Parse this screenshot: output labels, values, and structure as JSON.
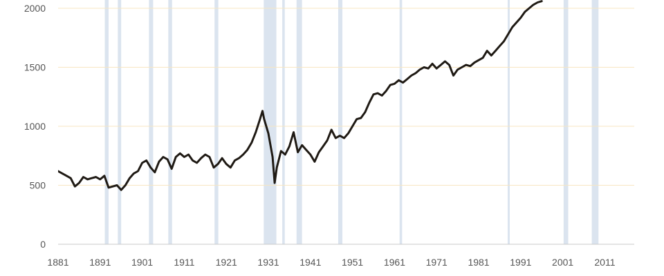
{
  "chart_data": {
    "type": "line",
    "title": "",
    "xlabel": "",
    "ylabel": "",
    "xlim": [
      1881,
      2018
    ],
    "ylim": [
      0,
      2000
    ],
    "grid": true,
    "legend": "none",
    "x_ticks": [
      "1881",
      "1891",
      "1901",
      "1911",
      "1921",
      "1931",
      "1941",
      "1951",
      "1961",
      "1971",
      "1981",
      "1991",
      "2001",
      "2011"
    ],
    "y_ticks": [
      "0",
      "500",
      "1000",
      "1500",
      "2000"
    ],
    "colors": {
      "line": "#1f1a14",
      "shading": "#dbe4ef",
      "grid": "#f7e6c1",
      "axis": "#c9c9c9"
    },
    "shaded_periods": [
      {
        "start": 1892.1,
        "end": 1893.0
      },
      {
        "start": 1895.2,
        "end": 1896.0
      },
      {
        "start": 1902.6,
        "end": 1903.6
      },
      {
        "start": 1907.2,
        "end": 1908.1
      },
      {
        "start": 1918.2,
        "end": 1919.1
      },
      {
        "start": 1929.9,
        "end": 1932.9
      },
      {
        "start": 1934.3,
        "end": 1934.9
      },
      {
        "start": 1937.7,
        "end": 1939.0
      },
      {
        "start": 1947.6,
        "end": 1948.6
      },
      {
        "start": 1962.2,
        "end": 1962.8
      },
      {
        "start": 1987.9,
        "end": 1988.4
      },
      {
        "start": 2001.2,
        "end": 2002.3
      },
      {
        "start": 2007.9,
        "end": 2009.5
      }
    ],
    "series": [
      {
        "x": [
          1881,
          1882,
          1883,
          1884,
          1885,
          1886,
          1887,
          1888,
          1889,
          1890,
          1891,
          1892,
          1893,
          1894,
          1895,
          1896,
          1897,
          1898,
          1899,
          1900,
          1901,
          1902,
          1903,
          1904,
          1905,
          1906,
          1907,
          1908,
          1909,
          1910,
          1911,
          1912,
          1913,
          1914,
          1915,
          1916,
          1917,
          1918,
          1919,
          1920,
          1921,
          1922,
          1923,
          1924,
          1925,
          1926,
          1927,
          1928,
          1929,
          1929.6,
          1930,
          1931,
          1932,
          1932.5,
          1933,
          1934,
          1935,
          1936,
          1937,
          1938,
          1939,
          1940,
          1941,
          1942,
          1943,
          1944,
          1945,
          1946,
          1947,
          1948,
          1949,
          1950,
          1951,
          1952,
          1953,
          1954,
          1955,
          1956,
          1957,
          1958,
          1959,
          1960,
          1961,
          1962,
          1963,
          1964,
          1965,
          1966,
          1967,
          1968,
          1969,
          1970,
          1971,
          1972,
          1973,
          1974,
          1975,
          1976,
          1977,
          1978,
          1979,
          1980,
          1981,
          1982,
          1983,
          1984,
          1985,
          1986,
          1987,
          1988,
          1989,
          1990,
          1991,
          1992,
          1993,
          1994,
          1995,
          1996
        ],
        "values": [
          620,
          600,
          580,
          560,
          490,
          520,
          570,
          550,
          560,
          570,
          550,
          580,
          480,
          490,
          500,
          460,
          500,
          560,
          600,
          620,
          690,
          710,
          650,
          610,
          700,
          740,
          720,
          640,
          740,
          770,
          740,
          760,
          710,
          690,
          730,
          760,
          740,
          650,
          680,
          730,
          680,
          650,
          710,
          730,
          760,
          800,
          860,
          950,
          1060,
          1130,
          1060,
          940,
          740,
          520,
          650,
          790,
          760,
          830,
          950,
          780,
          840,
          800,
          760,
          700,
          780,
          830,
          880,
          970,
          900,
          920,
          900,
          940,
          1000,
          1060,
          1070,
          1120,
          1200,
          1270,
          1280,
          1260,
          1300,
          1350,
          1360,
          1390,
          1370,
          1400,
          1430,
          1450,
          1480,
          1500,
          1490,
          1530,
          1490,
          1520,
          1550,
          1520,
          1430,
          1480,
          1500,
          1520,
          1510,
          1540,
          1560,
          1580,
          1640,
          1600,
          1640,
          1680,
          1720,
          1780,
          1840,
          1880,
          1920,
          1970,
          2000,
          2030,
          2050,
          2060
        ]
      }
    ]
  }
}
